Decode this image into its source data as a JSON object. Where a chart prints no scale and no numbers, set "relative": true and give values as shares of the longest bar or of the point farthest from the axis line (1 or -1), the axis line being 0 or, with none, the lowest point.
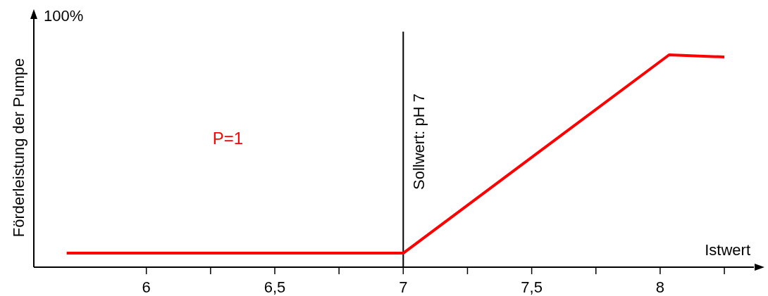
{
  "chart_data": {
    "type": "line",
    "relative": true,
    "xlabel": "Istwert",
    "ylabel": "Förderleistung der Pumpe",
    "annotations": [
      "100%"
    ],
    "xlim": [
      5.562,
      8.365
    ],
    "xticks": [
      6,
      {
        "value": 6.25,
        "label": null
      },
      {
        "value": 6.5,
        "label": "6,5"
      },
      {
        "value": 6.75,
        "label": null
      },
      7,
      {
        "value": 7.25,
        "label": null
      },
      {
        "value": 7.5,
        "label": "7,5"
      },
      {
        "value": 7.75,
        "label": null
      },
      8,
      {
        "value": 8.25,
        "label": null
      }
    ],
    "series": [
      {
        "name": "P=1",
        "color": "#ff0000",
        "x": [
          5.69,
          7.0,
          8.035,
          8.25
        ],
        "values": [
          0.066,
          0.066,
          1,
          0.99
        ]
      }
    ],
    "ref_lines": [
      {
        "axis": "x",
        "value": 7,
        "label": "Sollwert: pH 7",
        "color": "#000000"
      }
    ],
    "grid": false,
    "marker": "none",
    "line_style": "solid"
  }
}
